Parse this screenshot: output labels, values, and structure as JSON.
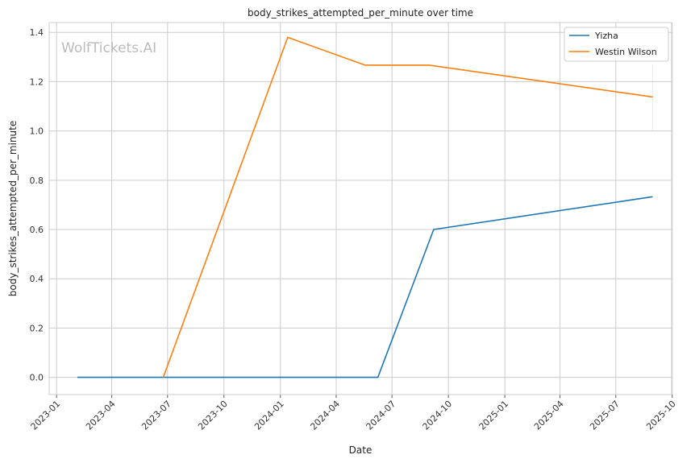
{
  "watermark": "WolfTickets.AI",
  "chart_data": {
    "type": "line",
    "title": "body_strikes_attempted_per_minute over time",
    "xlabel": "Date",
    "ylabel": "body_strikes_attempted_per_minute",
    "x_ticks": [
      "2023-01",
      "2023-04",
      "2023-07",
      "2023-10",
      "2024-01",
      "2024-04",
      "2024-07",
      "2024-10",
      "2025-01",
      "2025-04",
      "2025-07",
      "2025-10"
    ],
    "y_ticks": [
      "0.0",
      "0.2",
      "0.4",
      "0.6",
      "0.8",
      "1.0",
      "1.2",
      "1.4"
    ],
    "xlim": [
      "2022-12-20",
      "2025-09-30"
    ],
    "ylim": [
      -0.07,
      1.44
    ],
    "grid": true,
    "legend_position": "top-right",
    "series": [
      {
        "name": "Yizha",
        "color": "#1f77b4",
        "points": [
          {
            "x": "2023-02-04",
            "y": 0.0
          },
          {
            "x": "2024-06-08",
            "y": 0.0
          },
          {
            "x": "2024-09-07",
            "y": 0.6
          },
          {
            "x": "2025-08-30",
            "y": 0.733
          }
        ]
      },
      {
        "name": "Westin Wilson",
        "color": "#ff7f0e",
        "points": [
          {
            "x": "2023-06-24",
            "y": 0.0
          },
          {
            "x": "2024-01-13",
            "y": 1.38
          },
          {
            "x": "2024-05-18",
            "y": 1.267
          },
          {
            "x": "2024-08-31",
            "y": 1.267
          },
          {
            "x": "2025-08-30",
            "y": 1.138
          }
        ]
      }
    ]
  }
}
